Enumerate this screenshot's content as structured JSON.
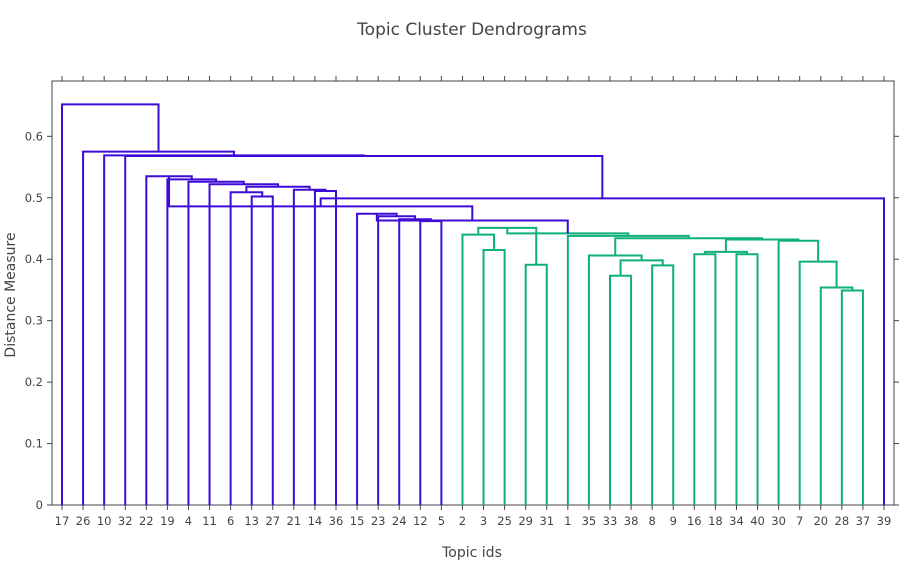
{
  "chart_data": {
    "type": "dendrogram",
    "title": "Topic Cluster Dendrograms",
    "xlabel": "Topic ids",
    "ylabel": "Distance Measure",
    "ylim": [
      0,
      0.65
    ],
    "yticks": [
      0,
      0.1,
      0.2,
      0.3,
      0.4,
      0.5,
      0.6
    ],
    "leaves": [
      "17",
      "26",
      "10",
      "32",
      "22",
      "19",
      "4",
      "11",
      "6",
      "13",
      "27",
      "21",
      "14",
      "36",
      "15",
      "23",
      "24",
      "12",
      "5",
      "2",
      "3",
      "25",
      "29",
      "31",
      "1",
      "35",
      "33",
      "38",
      "8",
      "9",
      "16",
      "18",
      "34",
      "40",
      "30",
      "7",
      "20",
      "28",
      "37",
      "39"
    ],
    "colors": {
      "cluster_a": "#3d0ad6",
      "cluster_b": "#0eb07a"
    },
    "merges": [
      {
        "left": 9,
        "right": 10,
        "height": 0.502,
        "color": "cluster_a"
      },
      {
        "left": 8,
        "right": 40,
        "height": 0.509,
        "color": "cluster_a"
      },
      {
        "left": 12,
        "right": 13,
        "height": 0.511,
        "color": "cluster_a"
      },
      {
        "left": 11,
        "right": 42,
        "height": 0.513,
        "color": "cluster_a"
      },
      {
        "left": 41,
        "right": 43,
        "height": 0.518,
        "color": "cluster_a"
      },
      {
        "left": 7,
        "right": 44,
        "height": 0.522,
        "color": "cluster_a"
      },
      {
        "left": 6,
        "right": 45,
        "height": 0.526,
        "color": "cluster_a"
      },
      {
        "left": 5,
        "right": 46,
        "height": 0.53,
        "color": "cluster_a"
      },
      {
        "left": 4,
        "right": 47,
        "height": 0.535,
        "color": "cluster_a"
      },
      {
        "left": 17,
        "right": 18,
        "height": 0.462,
        "color": "cluster_a"
      },
      {
        "left": 16,
        "right": 49,
        "height": 0.465,
        "color": "cluster_a"
      },
      {
        "left": 15,
        "right": 50,
        "height": 0.47,
        "color": "cluster_a"
      },
      {
        "left": 14,
        "right": 51,
        "height": 0.474,
        "color": "cluster_a"
      },
      {
        "left": 20,
        "right": 21,
        "height": 0.415,
        "color": "cluster_b"
      },
      {
        "left": 22,
        "right": 23,
        "height": 0.391,
        "color": "cluster_b"
      },
      {
        "left": 19,
        "right": 53,
        "height": 0.44,
        "color": "cluster_b"
      },
      {
        "left": 55,
        "right": 54,
        "height": 0.451,
        "color": "cluster_b"
      },
      {
        "left": 26,
        "right": 27,
        "height": 0.373,
        "color": "cluster_b"
      },
      {
        "left": 28,
        "right": 29,
        "height": 0.39,
        "color": "cluster_b"
      },
      {
        "left": 57,
        "right": 58,
        "height": 0.398,
        "color": "cluster_b"
      },
      {
        "left": 25,
        "right": 59,
        "height": 0.406,
        "color": "cluster_b"
      },
      {
        "left": 30,
        "right": 31,
        "height": 0.408,
        "color": "cluster_b"
      },
      {
        "left": 32,
        "right": 33,
        "height": 0.408,
        "color": "cluster_b"
      },
      {
        "left": 61,
        "right": 62,
        "height": 0.412,
        "color": "cluster_b"
      },
      {
        "left": 37,
        "right": 38,
        "height": 0.349,
        "color": "cluster_b"
      },
      {
        "left": 36,
        "right": 64,
        "height": 0.354,
        "color": "cluster_b"
      },
      {
        "left": 35,
        "right": 65,
        "height": 0.396,
        "color": "cluster_b"
      },
      {
        "left": 34,
        "right": 66,
        "height": 0.43,
        "color": "cluster_b"
      },
      {
        "left": 63,
        "right": 67,
        "height": 0.432,
        "color": "cluster_b"
      },
      {
        "left": 60,
        "right": 68,
        "height": 0.434,
        "color": "cluster_b"
      },
      {
        "left": 24,
        "right": 69,
        "height": 0.438,
        "color": "cluster_b"
      },
      {
        "left": 56,
        "right": 70,
        "height": 0.442,
        "color": "cluster_b"
      },
      {
        "left": 52,
        "right": 71,
        "height": 0.463,
        "color": "cluster_a"
      },
      {
        "left": 48,
        "right": 72,
        "height": 0.486,
        "color": "cluster_a"
      },
      {
        "left": 73,
        "right": 39,
        "height": 0.499,
        "color": "cluster_a"
      },
      {
        "left": 3,
        "right": 74,
        "height": 0.568,
        "color": "cluster_a"
      },
      {
        "left": 2,
        "right": 75,
        "height": 0.569,
        "color": "cluster_a"
      },
      {
        "left": 1,
        "right": 76,
        "height": 0.575,
        "color": "cluster_a"
      },
      {
        "left": 0,
        "right": 77,
        "height": 0.652,
        "color": "cluster_a"
      }
    ],
    "grid": false,
    "legend": "none"
  }
}
